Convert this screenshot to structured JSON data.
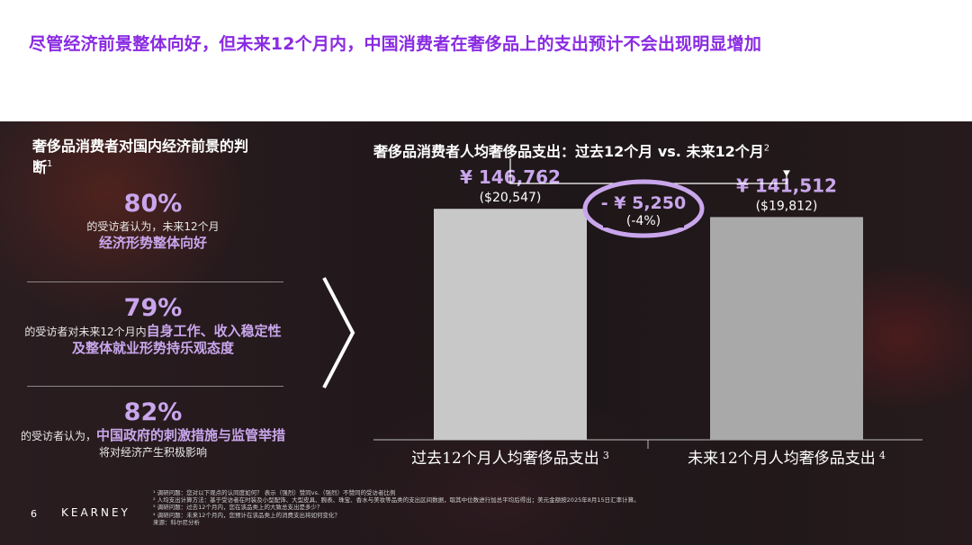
{
  "page": {
    "title": "尽管经济前景整体向好，但未来12个月内，中国消费者在奢侈品上的支出预计不会出现明显增加",
    "page_number": "6",
    "brand": "KEARNEY"
  },
  "left_panel": {
    "heading": "奢侈品消费者对国内经济前景的判断",
    "heading_note": "1",
    "stats": [
      {
        "pct": "80%",
        "pre": "的受访者认为，未来12个月",
        "highlight": "经济形势整体向好",
        "post": ""
      },
      {
        "pct": "79%",
        "pre": "的受访者对未来12个月内",
        "highlight": "自身工作、收入稳定性及整体就业形势持乐观态度",
        "post": ""
      },
      {
        "pct": "82%",
        "pre": "的受访者认为，",
        "highlight": "中国政府的刺激措施与监管举措",
        "post": "将对经济产生积极影响"
      }
    ]
  },
  "chart_data": {
    "type": "bar",
    "title": "奢侈品消费者人均奢侈品支出：过去12个月 vs. 未来12个月",
    "title_note": "2",
    "categories": [
      "过去12个月人均奢侈品支出",
      "未来12个月人均奢侈品支出"
    ],
    "category_notes": [
      "3",
      "4"
    ],
    "values": [
      146762,
      141512
    ],
    "value_labels": [
      "¥ 146,762",
      "¥ 141,512"
    ],
    "usd_labels": [
      "($20,547)",
      "($19,812)"
    ],
    "ylim": [
      0,
      160000
    ],
    "bar_colors": [
      "#c8c8c8",
      "#a9a9a9"
    ],
    "change_label": "- ¥ 5,250",
    "change_pct": "(-4%)",
    "accent_color": "#c9a6ec"
  },
  "footnotes": [
    "¹ 调研问题：您对以下观点的认同度如何？ 表示（强烈）赞同vs.（强烈）不赞同的受访者比例",
    "² 人均支出计算方法：基于受访者在时装及小型配饰、大型皮具、腕表、珠宝、香水与美妆等品类的支出区间数据，取其中位数进行加总平均后得出；美元金额按2025年8月15日汇率计算。",
    "³ 调研问题：过去12个月内，您在该品类上的大致总支出是多少？",
    "⁴ 调研问题：未来12个月内，您预计在该品类上的消费支出将如何变化？",
    "来源：科尔尼分析"
  ]
}
